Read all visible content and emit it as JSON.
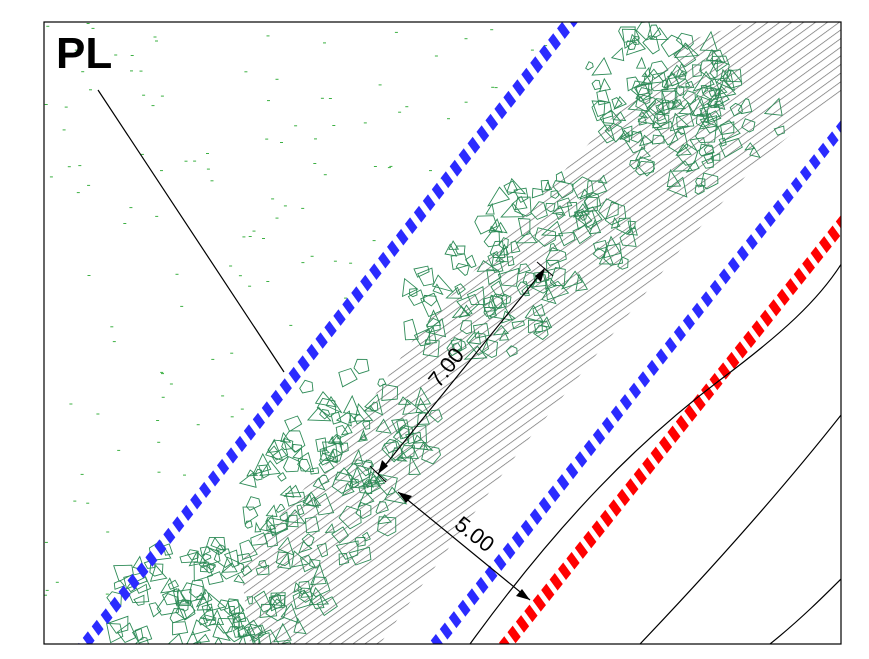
{
  "drawing": {
    "label": "PL",
    "dimensions": [
      {
        "text": "7.00"
      },
      {
        "text": "5.00"
      }
    ]
  },
  "colors": {
    "blue_line": "#2b2bff",
    "red_line": "#ff0000",
    "foliage": "#2e8b57",
    "hatch": "#555555",
    "dots": "#3cb043",
    "frame": "#000000"
  }
}
